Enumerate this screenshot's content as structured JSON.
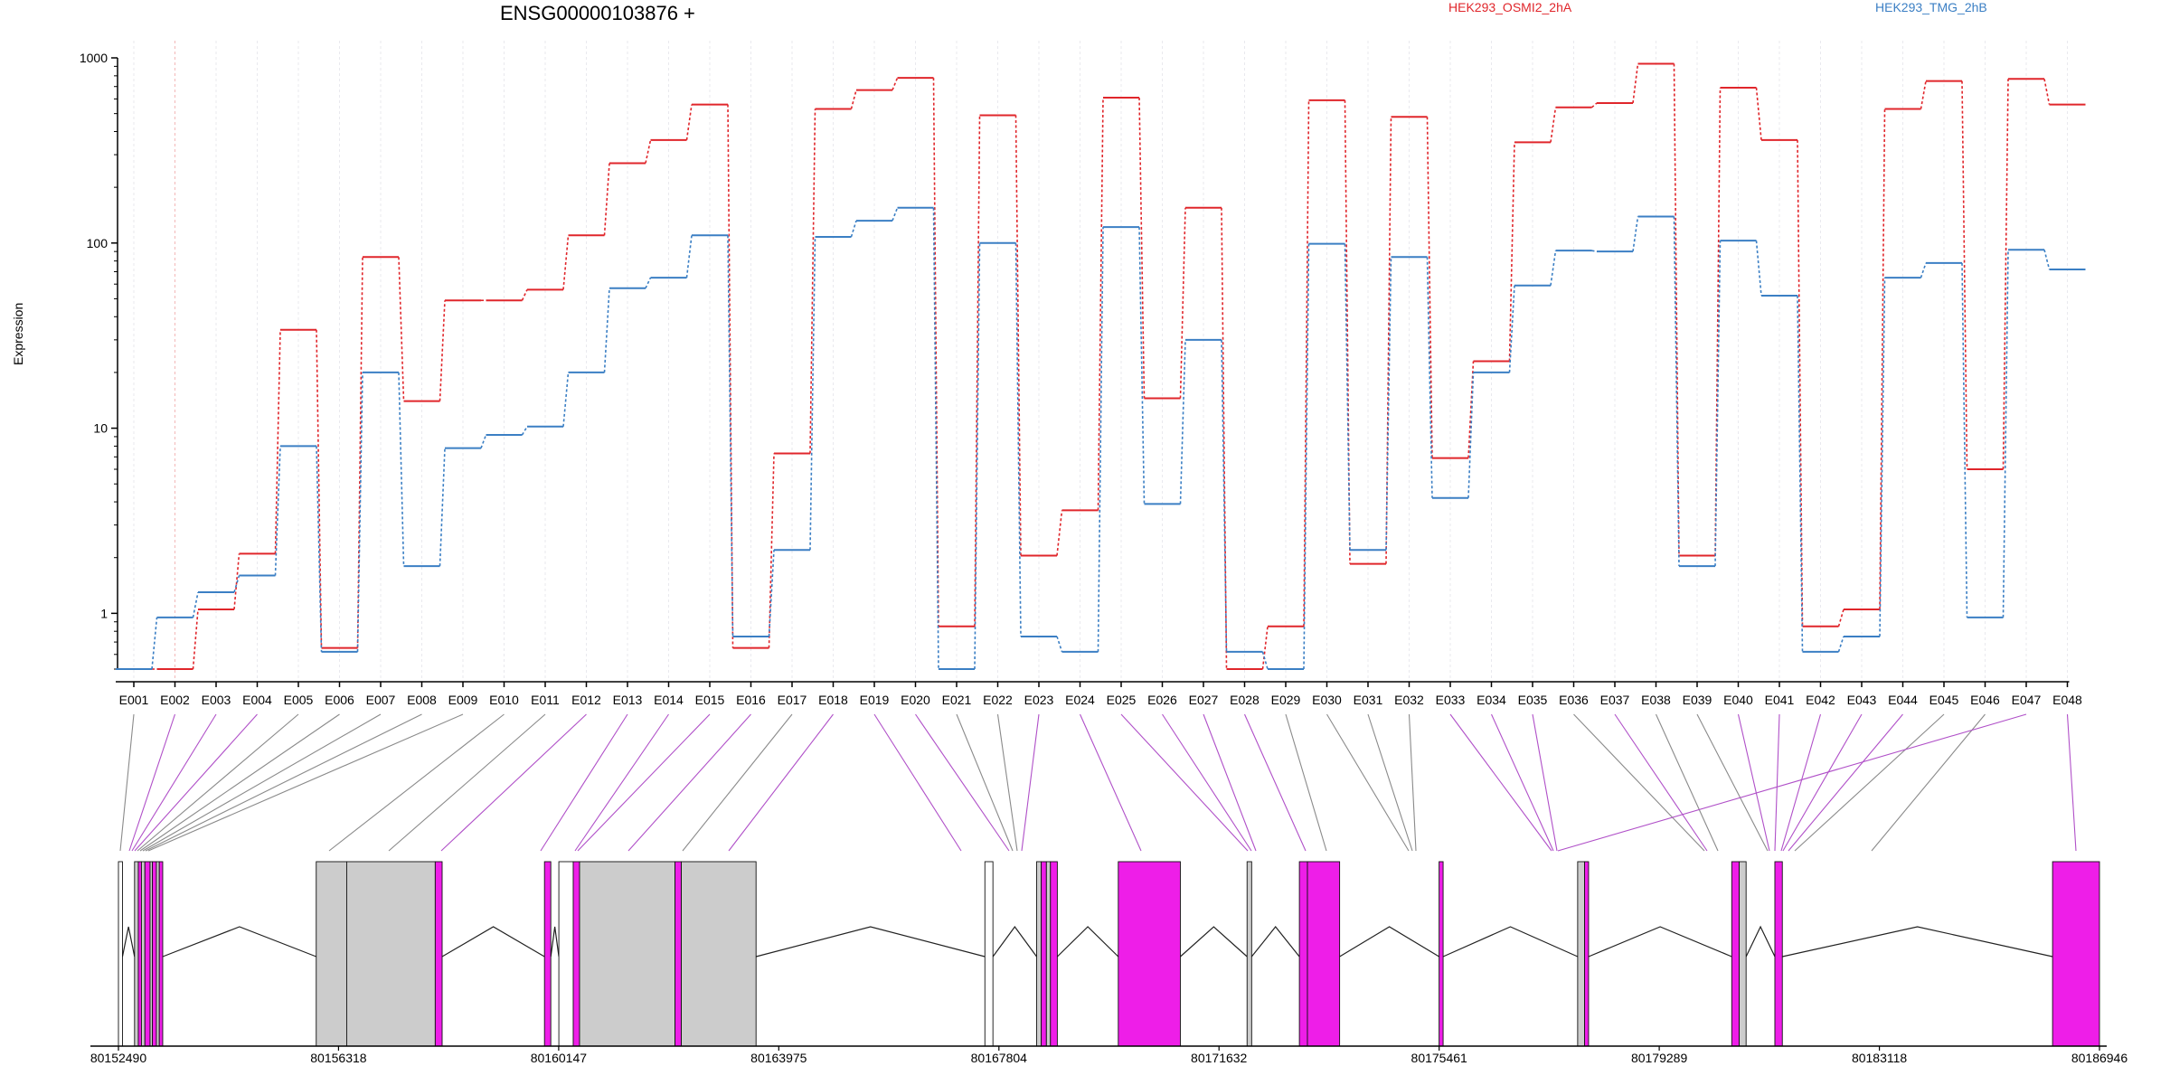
{
  "page": {
    "gene_title": "ENSG00000103876 +",
    "legend": [
      {
        "name": "HEK293_OSMI2_2hA",
        "color": "#e0262b"
      },
      {
        "name": "HEK293_TMG_2hB",
        "color": "#3b7fc4"
      }
    ],
    "ylabel": "Expression"
  },
  "chart_data": [
    {
      "type": "line",
      "title": "ENSG00000103876 +",
      "ylabel": "Expression",
      "yscale": "log",
      "ylim": [
        0.5,
        1000
      ],
      "yticks": [
        1,
        10,
        100,
        1000
      ],
      "ytick_labels": [
        "1",
        "10",
        "100",
        "1000"
      ],
      "grid": "vertical dashed per exon",
      "legend_position": "top",
      "categories": [
        "E001",
        "E002",
        "E003",
        "E004",
        "E005",
        "E006",
        "E007",
        "E008",
        "E009",
        "E010",
        "E011",
        "E012",
        "E013",
        "E014",
        "E015",
        "E016",
        "E017",
        "E018",
        "E019",
        "E020",
        "E021",
        "E022",
        "E023",
        "E024",
        "E025",
        "E026",
        "E027",
        "E028",
        "E029",
        "E030",
        "E031",
        "E032",
        "E033",
        "E034",
        "E035",
        "E036",
        "E037",
        "E038",
        "E039",
        "E040",
        "E041",
        "E042",
        "E043",
        "E044",
        "E045",
        "E046",
        "E047",
        "E048"
      ],
      "series": [
        {
          "name": "HEK293_OSMI2_2hA",
          "color": "#e0262b",
          "values": [
            0.5,
            0.5,
            1.05,
            2.1,
            34,
            0.65,
            84,
            14,
            49,
            49,
            56,
            110,
            270,
            360,
            560,
            0.65,
            7.3,
            530,
            670,
            780,
            0.85,
            490,
            2.05,
            3.6,
            610,
            14.5,
            155,
            0.5,
            0.85,
            590,
            1.85,
            480,
            6.9,
            23,
            350,
            540,
            570,
            930,
            2.05,
            690,
            360,
            0.85,
            1.05,
            530,
            750,
            6,
            770,
            560
          ]
        },
        {
          "name": "HEK293_TMG_2hB",
          "color": "#3b7fc4",
          "values": [
            0.5,
            0.95,
            1.3,
            1.6,
            8,
            0.62,
            20,
            1.8,
            7.8,
            9.2,
            10.2,
            20,
            57,
            65,
            110,
            0.75,
            2.2,
            108,
            132,
            155,
            0.5,
            100,
            0.75,
            0.62,
            122,
            3.9,
            30,
            0.62,
            0.5,
            99,
            2.2,
            84,
            4.2,
            20,
            59,
            91,
            90,
            139,
            1.8,
            103,
            52,
            0.62,
            0.75,
            65,
            78,
            0.95,
            92,
            72
          ]
        }
      ]
    },
    {
      "type": "gene-model",
      "x_ticks": [
        80152490,
        80156318,
        80160147,
        80163975,
        80167804,
        80171632,
        80175461,
        80179289,
        80183118,
        80186946
      ],
      "xlim": [
        80152490,
        80186946
      ],
      "colors": {
        "significant_exon": "#ee1ee8",
        "exon": "#cccccc",
        "empty_exon": "#ffffff",
        "connector_sig": "#b050c8",
        "connector": "#8a8a8a"
      },
      "exons": [
        {
          "id": "E001",
          "start": 80152490,
          "end": 80152560,
          "fill": "white",
          "significant": false
        },
        {
          "id": "E002",
          "start": 80152770,
          "end": 80152835,
          "fill": "gray",
          "significant": true
        },
        {
          "id": "E003",
          "start": 80152835,
          "end": 80152890,
          "fill": "magenta",
          "significant": true
        },
        {
          "id": "E004",
          "start": 80152890,
          "end": 80152950,
          "fill": "gray",
          "significant": true
        },
        {
          "id": "E005",
          "start": 80152950,
          "end": 80153040,
          "fill": "magenta",
          "significant": true
        },
        {
          "id": "E006",
          "start": 80153040,
          "end": 80153080,
          "fill": "gray",
          "significant": false
        },
        {
          "id": "E007",
          "start": 80153080,
          "end": 80153150,
          "fill": "magenta",
          "significant": true
        },
        {
          "id": "E008",
          "start": 80153150,
          "end": 80153200,
          "fill": "gray",
          "significant": true
        },
        {
          "id": "E009",
          "start": 80153200,
          "end": 80153260,
          "fill": "magenta",
          "significant": true
        },
        {
          "id": "E010",
          "start": 80155930,
          "end": 80156460,
          "fill": "gray",
          "significant": false
        },
        {
          "id": "E011",
          "start": 80156460,
          "end": 80158000,
          "fill": "gray",
          "significant": false
        },
        {
          "id": "E012",
          "start": 80158000,
          "end": 80158120,
          "fill": "magenta",
          "significant": true
        },
        {
          "id": "E013",
          "start": 80159900,
          "end": 80160010,
          "fill": "magenta",
          "significant": true
        },
        {
          "id": "E014",
          "start": 80160150,
          "end": 80160400,
          "fill": "white",
          "significant": false
        },
        {
          "id": "E015",
          "start": 80160400,
          "end": 80160510,
          "fill": "magenta",
          "significant": true
        },
        {
          "id": "E016",
          "start": 80160510,
          "end": 80162170,
          "fill": "gray",
          "significant": false
        },
        {
          "id": "E017",
          "start": 80162170,
          "end": 80162280,
          "fill": "magenta",
          "significant": true
        },
        {
          "id": "E018",
          "start": 80162280,
          "end": 80163580,
          "fill": "gray",
          "significant": false
        },
        {
          "id": "E019",
          "start": 80167560,
          "end": 80167700,
          "fill": "white",
          "significant": false
        },
        {
          "id": "E020",
          "start": 80168460,
          "end": 80168540,
          "fill": "gray",
          "significant": true
        },
        {
          "id": "E021",
          "start": 80168540,
          "end": 80168630,
          "fill": "magenta",
          "significant": true
        },
        {
          "id": "E022",
          "start": 80168630,
          "end": 80168700,
          "fill": "gray",
          "significant": true
        },
        {
          "id": "E023",
          "start": 80168700,
          "end": 80168820,
          "fill": "magenta",
          "significant": true
        },
        {
          "id": "E024",
          "start": 80169880,
          "end": 80170960,
          "fill": "magenta",
          "significant": true
        },
        {
          "id": "E025",
          "start": 80172120,
          "end": 80172200,
          "fill": "gray",
          "significant": false
        },
        {
          "id": "E026",
          "start": 80173030,
          "end": 80173170,
          "fill": "magenta",
          "significant": true
        },
        {
          "id": "E027",
          "start": 80173170,
          "end": 80173730,
          "fill": "magenta",
          "significant": true
        },
        {
          "id": "E028",
          "start": 80175460,
          "end": 80175530,
          "fill": "magenta",
          "significant": true
        },
        {
          "id": "E029",
          "start": 80177870,
          "end": 80177990,
          "fill": "gray",
          "significant": false
        },
        {
          "id": "E030",
          "start": 80177990,
          "end": 80178060,
          "fill": "magenta",
          "significant": true
        },
        {
          "id": "E031",
          "start": 80180550,
          "end": 80180680,
          "fill": "magenta",
          "significant": true
        },
        {
          "id": "E032",
          "start": 80180680,
          "end": 80180800,
          "fill": "gray",
          "significant": false
        },
        {
          "id": "E033",
          "start": 80181300,
          "end": 80181430,
          "fill": "magenta",
          "significant": true
        },
        {
          "id": "E034",
          "start": 80186130,
          "end": 80186946,
          "fill": "magenta",
          "significant": true
        }
      ],
      "connectors": [
        {
          "exon": "E001",
          "significant": false
        },
        {
          "exon": "E002",
          "significant": true
        },
        {
          "exon": "E003",
          "significant": true
        },
        {
          "exon": "E004",
          "significant": true
        },
        {
          "exon": "E005",
          "significant": false
        },
        {
          "exon": "E006",
          "significant": false
        },
        {
          "exon": "E007",
          "significant": false
        },
        {
          "exon": "E008",
          "significant": false
        },
        {
          "exon": "E009",
          "significant": false
        },
        {
          "exon": "E010",
          "significant": false
        },
        {
          "exon": "E011",
          "significant": false
        },
        {
          "exon": "E012",
          "significant": true
        },
        {
          "exon": "E013",
          "significant": true
        },
        {
          "exon": "E014",
          "significant": true
        },
        {
          "exon": "E015",
          "significant": true
        },
        {
          "exon": "E016",
          "significant": true
        },
        {
          "exon": "E017",
          "significant": false
        },
        {
          "exon": "E018",
          "significant": true
        },
        {
          "exon": "E019",
          "significant": true
        },
        {
          "exon": "E020",
          "significant": true
        },
        {
          "exon": "E021",
          "significant": false
        },
        {
          "exon": "E022",
          "significant": false
        },
        {
          "exon": "E023",
          "significant": true
        },
        {
          "exon": "E024",
          "significant": true
        },
        {
          "exon": "E025",
          "significant": true
        },
        {
          "exon": "E026",
          "significant": true
        },
        {
          "exon": "E027",
          "significant": true
        },
        {
          "exon": "E028",
          "significant": true
        },
        {
          "exon": "E029",
          "significant": false
        },
        {
          "exon": "E030",
          "significant": false
        },
        {
          "exon": "E031",
          "significant": false
        },
        {
          "exon": "E032",
          "significant": false
        },
        {
          "exon": "E033",
          "significant": true
        },
        {
          "exon": "E034",
          "significant": true
        },
        {
          "exon": "E035",
          "significant": true
        },
        {
          "exon": "E036",
          "significant": false
        },
        {
          "exon": "E037",
          "significant": true
        },
        {
          "exon": "E038",
          "significant": false
        },
        {
          "exon": "E039",
          "significant": false
        },
        {
          "exon": "E040",
          "significant": true
        },
        {
          "exon": "E041",
          "significant": true
        },
        {
          "exon": "E042",
          "significant": true
        },
        {
          "exon": "E043",
          "significant": true
        },
        {
          "exon": "E044",
          "significant": true
        },
        {
          "exon": "E045",
          "significant": false
        },
        {
          "exon": "E046",
          "significant": false
        },
        {
          "exon": "E047",
          "significant": true
        },
        {
          "exon": "E048",
          "significant": true
        }
      ]
    }
  ]
}
